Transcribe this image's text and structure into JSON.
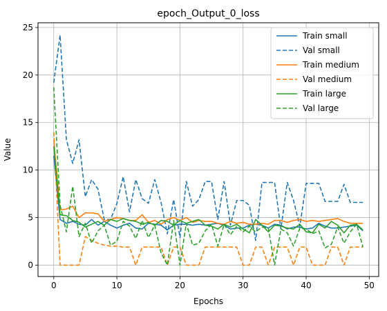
{
  "chart_data": {
    "type": "line",
    "title": "epoch_Output_0_loss",
    "xlabel": "Epochs",
    "ylabel": "Value",
    "xlim": [
      -2.5,
      51.5
    ],
    "ylim": [
      -1.2,
      25.5
    ],
    "xticks": [
      0,
      10,
      20,
      30,
      40,
      50
    ],
    "yticks": [
      0,
      5,
      10,
      15,
      20,
      25
    ],
    "grid": true,
    "legend_position": "top-right",
    "series": [
      {
        "name": "Train small",
        "color": "#1f77b4",
        "dash": "solid",
        "x": [
          0,
          1,
          2,
          3,
          4,
          5,
          6,
          7,
          8,
          9,
          10,
          11,
          12,
          13,
          14,
          15,
          16,
          17,
          18,
          19,
          20,
          21,
          22,
          23,
          24,
          25,
          26,
          27,
          28,
          29,
          30,
          31,
          32,
          33,
          34,
          35,
          36,
          37,
          38,
          39,
          40,
          41,
          42,
          43,
          44,
          45,
          46,
          47,
          48,
          49
        ],
        "values": [
          11.5,
          4.8,
          4.4,
          4.6,
          4.3,
          4.2,
          4.8,
          4.2,
          4.6,
          4.2,
          3.9,
          4.2,
          4.4,
          3.9,
          3.8,
          4.4,
          4.3,
          4.2,
          3.7,
          4.2,
          4.3,
          4.3,
          4.2,
          4.3,
          4.2,
          4.3,
          4.4,
          4.2,
          3.8,
          3.9,
          3.9,
          4.2,
          4.3,
          4.2,
          3.9,
          4.3,
          4.2,
          3.8,
          4.0,
          4.0,
          3.8,
          3.9,
          4.4,
          4.1,
          3.9,
          3.9,
          4.0,
          4.1,
          4.2,
          3.6
        ]
      },
      {
        "name": "Val small",
        "color": "#1f77b4",
        "dash": "dashed",
        "x": [
          0,
          1,
          2,
          3,
          4,
          5,
          6,
          7,
          8,
          9,
          10,
          11,
          12,
          13,
          14,
          15,
          16,
          17,
          18,
          19,
          20,
          21,
          22,
          23,
          24,
          25,
          26,
          27,
          28,
          29,
          30,
          31,
          32,
          33,
          34,
          35,
          36,
          37,
          38,
          39,
          40,
          41,
          42,
          43,
          44,
          45,
          46,
          47,
          48,
          49
        ],
        "values": [
          19.2,
          24.2,
          13.2,
          10.7,
          13.2,
          7.2,
          9.0,
          8.0,
          4.8,
          4.8,
          6.5,
          9.3,
          5.6,
          9.0,
          7.0,
          6.5,
          9.0,
          6.6,
          3.3,
          6.9,
          2.9,
          8.8,
          6.2,
          6.9,
          8.8,
          8.8,
          4.8,
          8.8,
          4.2,
          6.8,
          6.8,
          6.3,
          2.6,
          8.7,
          8.7,
          8.7,
          3.8,
          8.7,
          6.8,
          4.1,
          8.6,
          8.6,
          8.6,
          6.7,
          6.7,
          6.7,
          8.5,
          6.6,
          6.6,
          6.6
        ]
      },
      {
        "name": "Train medium",
        "color": "#ff7f0e",
        "dash": "solid",
        "x": [
          0,
          1,
          2,
          3,
          4,
          5,
          6,
          7,
          8,
          9,
          10,
          11,
          12,
          13,
          14,
          15,
          16,
          17,
          18,
          19,
          20,
          21,
          22,
          23,
          24,
          25,
          26,
          27,
          28,
          29,
          30,
          31,
          32,
          33,
          34,
          35,
          36,
          37,
          38,
          39,
          40,
          41,
          42,
          43,
          44,
          45,
          46,
          47,
          48,
          49
        ],
        "values": [
          13.2,
          5.8,
          5.9,
          6.2,
          5.0,
          5.5,
          5.5,
          5.4,
          4.6,
          4.8,
          5.0,
          4.9,
          4.7,
          4.7,
          5.3,
          4.5,
          4.7,
          4.3,
          4.8,
          5.0,
          4.7,
          5.0,
          4.5,
          4.7,
          4.6,
          4.6,
          4.4,
          4.3,
          4.6,
          4.4,
          4.5,
          4.3,
          4.3,
          4.4,
          4.3,
          4.7,
          4.7,
          4.5,
          4.7,
          4.8,
          4.6,
          4.7,
          4.6,
          4.7,
          4.8,
          4.9,
          4.6,
          4.4,
          4.4,
          4.4
        ]
      },
      {
        "name": "Val medium",
        "color": "#ff7f0e",
        "dash": "dashed",
        "x": [
          0,
          1,
          2,
          3,
          4,
          5,
          6,
          7,
          8,
          9,
          10,
          11,
          12,
          13,
          14,
          15,
          16,
          17,
          18,
          19,
          20,
          21,
          22,
          23,
          24,
          25,
          26,
          27,
          28,
          29,
          30,
          31,
          32,
          33,
          34,
          35,
          36,
          37,
          38,
          39,
          40,
          41,
          42,
          43,
          44,
          45,
          46,
          47,
          48,
          49
        ],
        "values": [
          14.0,
          0.0,
          0.0,
          0.0,
          0.0,
          3.0,
          2.6,
          2.3,
          2.1,
          2.0,
          2.0,
          1.9,
          1.9,
          0.0,
          1.9,
          1.9,
          1.9,
          1.9,
          0.0,
          1.9,
          1.9,
          0.0,
          0.0,
          0.0,
          1.9,
          1.9,
          1.9,
          1.9,
          1.9,
          1.9,
          0.0,
          0.0,
          1.9,
          1.9,
          0.0,
          1.9,
          1.9,
          1.9,
          0.0,
          1.9,
          1.9,
          0.0,
          0.0,
          0.0,
          1.9,
          1.9,
          0.0,
          1.9,
          1.9,
          1.9
        ]
      },
      {
        "name": "Train large",
        "color": "#2ca02c",
        "dash": "solid",
        "x": [
          0,
          1,
          2,
          3,
          4,
          5,
          6,
          7,
          8,
          9,
          10,
          11,
          12,
          13,
          14,
          15,
          16,
          17,
          18,
          19,
          20,
          21,
          22,
          23,
          24,
          25,
          26,
          27,
          28,
          29,
          30,
          31,
          32,
          33,
          34,
          35,
          36,
          37,
          38,
          39,
          40,
          41,
          42,
          43,
          44,
          45,
          46,
          47,
          48,
          49
        ],
        "values": [
          12.5,
          5.3,
          5.2,
          4.7,
          4.5,
          4.0,
          4.3,
          4.6,
          4.2,
          4.8,
          4.6,
          4.9,
          4.7,
          4.6,
          4.3,
          4.5,
          4.2,
          4.7,
          4.6,
          4.2,
          4.7,
          4.4,
          4.6,
          4.8,
          4.2,
          4.1,
          3.8,
          4.3,
          4.0,
          4.3,
          3.8,
          3.4,
          4.8,
          4.2,
          3.5,
          4.2,
          4.1,
          3.9,
          3.8,
          4.3,
          3.5,
          3.4,
          4.3,
          3.9,
          4.6,
          4.2,
          3.4,
          4.2,
          4.3,
          3.7
        ]
      },
      {
        "name": "Val large",
        "color": "#2ca02c",
        "dash": "dashed",
        "x": [
          0,
          1,
          2,
          3,
          4,
          5,
          6,
          7,
          8,
          9,
          10,
          11,
          12,
          13,
          14,
          15,
          16,
          17,
          18,
          19,
          20,
          21,
          22,
          23,
          24,
          25,
          26,
          27,
          28,
          29,
          30,
          31,
          32,
          33,
          34,
          35,
          36,
          37,
          38,
          39,
          40,
          41,
          42,
          43,
          44,
          45,
          46,
          47,
          48,
          49
        ],
        "values": [
          18.7,
          6.3,
          3.5,
          8.3,
          3.0,
          4.4,
          2.3,
          3.6,
          4.2,
          2.1,
          2.5,
          4.6,
          4.1,
          2.8,
          4.7,
          2.9,
          4.2,
          1.3,
          0.0,
          4.7,
          0.0,
          4.4,
          2.1,
          2.3,
          3.6,
          4.3,
          2.0,
          4.3,
          3.2,
          4.1,
          3.5,
          4.1,
          3.5,
          4.0,
          3.9,
          0.0,
          3.8,
          3.4,
          2.0,
          3.9,
          3.8,
          3.3,
          3.6,
          1.8,
          2.2,
          4.0,
          2.3,
          3.5,
          4.3,
          1.9
        ]
      }
    ]
  }
}
